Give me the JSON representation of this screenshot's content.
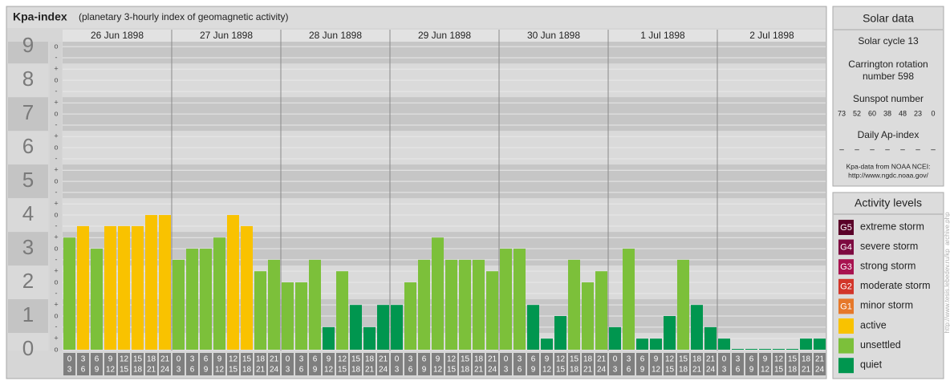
{
  "chart_data": {
    "type": "bar",
    "title": "Kpa-index",
    "subtitle": "(planetary 3-hourly index of geomagnetic activity)",
    "ylim": [
      0,
      9.17
    ],
    "yticks": [
      0,
      1,
      2,
      3,
      4,
      5,
      6,
      7,
      8,
      9
    ],
    "minor_ticks": [
      {
        "value": 9,
        "label": "o"
      },
      {
        "value": 8.67,
        "label": "-"
      },
      {
        "value": 8.33,
        "label": "+"
      },
      {
        "value": 8,
        "label": "o"
      },
      {
        "value": 7.67,
        "label": "-"
      },
      {
        "value": 7.33,
        "label": "+"
      },
      {
        "value": 7,
        "label": "o"
      },
      {
        "value": 6.67,
        "label": "-"
      },
      {
        "value": 6.33,
        "label": "+"
      },
      {
        "value": 6,
        "label": "o"
      },
      {
        "value": 5.67,
        "label": "-"
      },
      {
        "value": 5.33,
        "label": "+"
      },
      {
        "value": 5,
        "label": "o"
      },
      {
        "value": 4.67,
        "label": "-"
      },
      {
        "value": 4.33,
        "label": "+"
      },
      {
        "value": 4,
        "label": "o"
      },
      {
        "value": 3.67,
        "label": "-"
      },
      {
        "value": 3.33,
        "label": "+"
      },
      {
        "value": 3,
        "label": "o"
      },
      {
        "value": 2.67,
        "label": "-"
      },
      {
        "value": 2.33,
        "label": "+"
      },
      {
        "value": 2,
        "label": "o"
      },
      {
        "value": 1.67,
        "label": "-"
      },
      {
        "value": 1.33,
        "label": "+"
      },
      {
        "value": 1,
        "label": "o"
      },
      {
        "value": 0.67,
        "label": "-"
      },
      {
        "value": 0.33,
        "label": "+"
      },
      {
        "value": 0,
        "label": "o"
      }
    ],
    "hours": [
      [
        "0",
        "3"
      ],
      [
        "3",
        "6"
      ],
      [
        "6",
        "9"
      ],
      [
        "9",
        "12"
      ],
      [
        "12",
        "15"
      ],
      [
        "15",
        "18"
      ],
      [
        "18",
        "21"
      ],
      [
        "21",
        "24"
      ]
    ],
    "days": [
      {
        "label": "26 Jun 1898",
        "values": [
          3.33,
          3.67,
          3,
          3.67,
          3.67,
          3.67,
          4,
          4
        ],
        "colors": [
          "#7cc03a",
          "#f9c200",
          "#7cc03a",
          "#f9c200",
          "#f9c200",
          "#f9c200",
          "#f9c200",
          "#f9c200"
        ]
      },
      {
        "label": "27 Jun 1898",
        "values": [
          2.67,
          3,
          3,
          3.33,
          4,
          3.67,
          2.33,
          2.67
        ],
        "colors": [
          "#7cc03a",
          "#7cc03a",
          "#7cc03a",
          "#7cc03a",
          "#f9c200",
          "#f9c200",
          "#7cc03a",
          "#7cc03a"
        ]
      },
      {
        "label": "28 Jun 1898",
        "values": [
          2,
          2,
          2.67,
          0.67,
          2.33,
          1.33,
          0.67,
          1.33
        ],
        "colors": [
          "#7cc03a",
          "#7cc03a",
          "#7cc03a",
          "#00964f",
          "#7cc03a",
          "#00964f",
          "#00964f",
          "#00964f"
        ]
      },
      {
        "label": "29 Jun 1898",
        "values": [
          1.33,
          2,
          2.67,
          3.33,
          2.67,
          2.67,
          2.67,
          2.33
        ],
        "colors": [
          "#00964f",
          "#7cc03a",
          "#7cc03a",
          "#7cc03a",
          "#7cc03a",
          "#7cc03a",
          "#7cc03a",
          "#7cc03a"
        ]
      },
      {
        "label": "30 Jun 1898",
        "values": [
          3,
          3,
          1.33,
          0.33,
          1,
          2.67,
          2,
          2.33
        ],
        "colors": [
          "#7cc03a",
          "#7cc03a",
          "#00964f",
          "#00964f",
          "#00964f",
          "#7cc03a",
          "#7cc03a",
          "#7cc03a"
        ]
      },
      {
        "label": "1 Jul 1898",
        "values": [
          0.67,
          3,
          0.33,
          0.33,
          1,
          2.67,
          1.33,
          0.67
        ],
        "colors": [
          "#00964f",
          "#7cc03a",
          "#00964f",
          "#00964f",
          "#00964f",
          "#7cc03a",
          "#00964f",
          "#00964f"
        ]
      },
      {
        "label": "2 Jul 1898",
        "values": [
          0.33,
          0,
          0,
          0,
          0,
          0,
          0.33,
          0.33
        ],
        "colors": [
          "#00964f",
          "#00964f",
          "#00964f",
          "#00964f",
          "#00964f",
          "#00964f",
          "#00964f",
          "#00964f"
        ]
      }
    ]
  },
  "solar_data": {
    "title": "Solar data",
    "cycle": "Solar cycle 13",
    "carrington": [
      "Carrington rotation",
      "number 598"
    ],
    "sunspot_title": "Sunspot number",
    "sunspots": [
      73,
      52,
      60,
      38,
      48,
      23,
      0
    ],
    "ap_title": "Daily Ap-index",
    "ap": [
      "–",
      "–",
      "–",
      "–",
      "–",
      "–",
      "–"
    ],
    "source": [
      "Kpa-data from NOAA NCEI:",
      "http://www.ngdc.noaa.gov/"
    ]
  },
  "activity_levels": {
    "title": "Activity levels",
    "items": [
      {
        "badge": "G5",
        "label": "extreme storm",
        "color": "#5a0028"
      },
      {
        "badge": "G4",
        "label": "severe storm",
        "color": "#7d0a40"
      },
      {
        "badge": "G3",
        "label": "strong storm",
        "color": "#a8124f"
      },
      {
        "badge": "G2",
        "label": "moderate storm",
        "color": "#d2352a"
      },
      {
        "badge": "G1",
        "label": "minor storm",
        "color": "#e6782a"
      },
      {
        "label": "active",
        "color": "#f9c200"
      },
      {
        "label": "unsettled",
        "color": "#7cc03a"
      },
      {
        "label": "quiet",
        "color": "#00964f"
      }
    ]
  },
  "watermark": "http://www.tesis.lebedev.ru/kp_archive.php"
}
